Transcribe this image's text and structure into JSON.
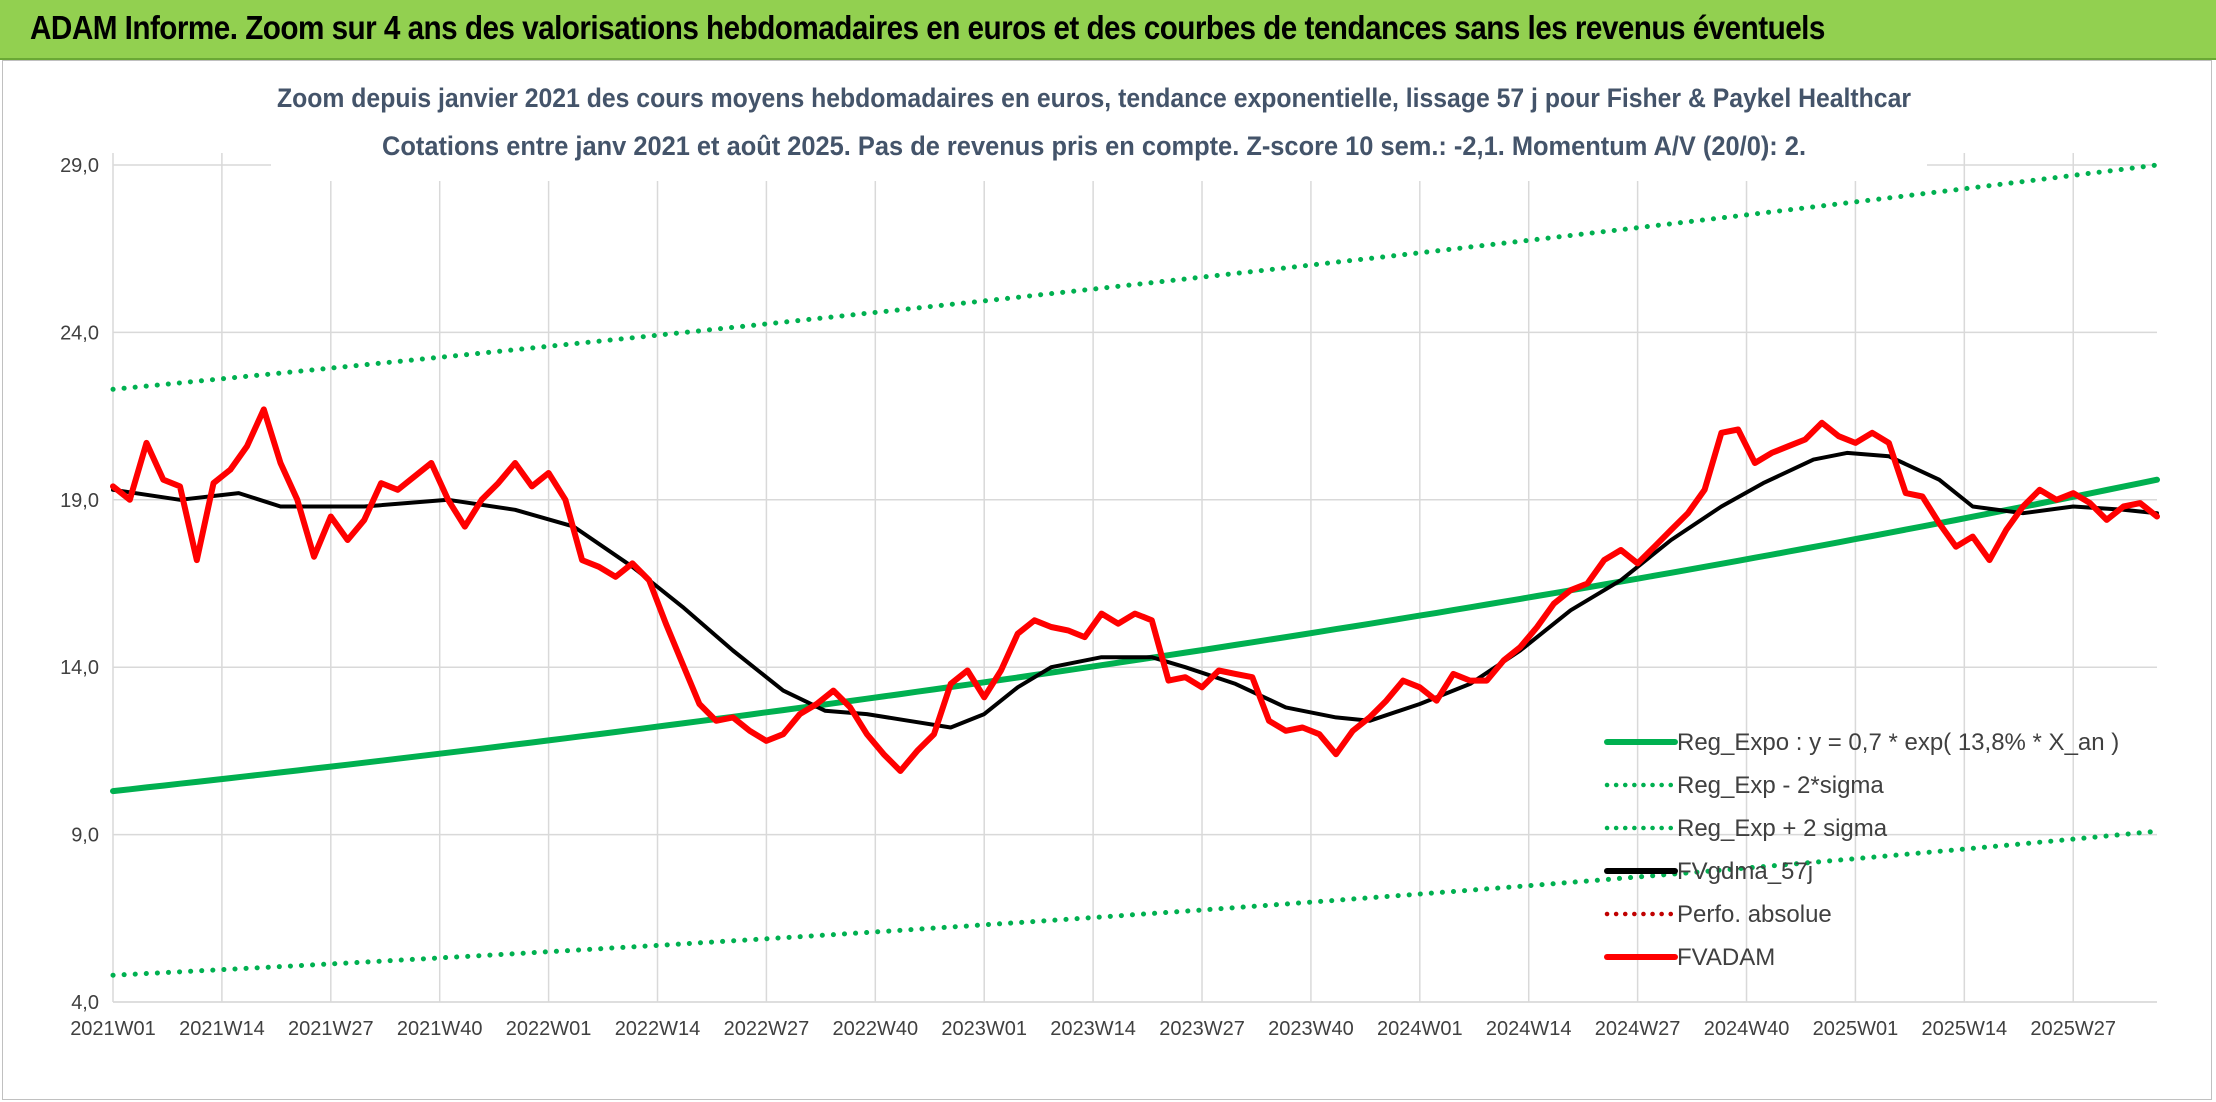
{
  "banner": {
    "title": "ADAM Informe. Zoom sur 4 ans des valorisations hebdomadaires en euros et des courbes de tendances sans les revenus éventuels"
  },
  "colors": {
    "banner_bg": "#92d050",
    "trend_green": "#00b050",
    "price_red": "#ff0000",
    "moving_avg_black": "#000000",
    "perf_red": "#c00000",
    "subtitle_text": "#44546a",
    "grid": "#d9d9d9"
  },
  "chart_data": {
    "type": "line",
    "title": "Zoom depuis janvier 2021 des cours moyens hebdomadaires en euros, tendance exponentielle, lissage 57 j pour Fisher & Paykel Healthcar",
    "subtitle": "Cotations entre janv 2021 et août 2025. Pas de revenus pris en compte. Z-score 10 sem.: -2,1. Momentum A/V (20/0): 2.",
    "xlabel": "",
    "ylabel": "",
    "ylim": [
      4.0,
      29.0
    ],
    "y_ticks": [
      "4,0",
      "9,0",
      "14,0",
      "19,0",
      "24,0",
      "29,0"
    ],
    "x_ticks": [
      "2021W01",
      "2021W14",
      "2021W27",
      "2021W40",
      "2022W01",
      "2022W14",
      "2022W27",
      "2022W40",
      "2023W01",
      "2023W14",
      "2023W27",
      "2023W40",
      "2024W01",
      "2024W14",
      "2024W27",
      "2024W40",
      "2025W01",
      "2025W14",
      "2025W27"
    ],
    "x_tick_index": [
      0,
      13,
      26,
      39,
      52,
      65,
      78,
      91,
      104,
      117,
      130,
      143,
      156,
      169,
      182,
      195,
      208,
      221,
      234
    ],
    "n_weeks": 245,
    "grid": true,
    "legend_position": "bottom-right",
    "series": [
      {
        "name": "Reg_Expo : y = 0,7 * exp( 13,8% *  X_an )",
        "style": "solid-thick",
        "color": "#00b050",
        "points": [
          [
            0,
            10.3
          ],
          [
            244,
            19.6
          ]
        ]
      },
      {
        "name": "Reg_Exp - 2*sigma",
        "style": "dotted",
        "color": "#00b050",
        "points": [
          [
            0,
            4.8
          ],
          [
            244,
            9.1
          ]
        ]
      },
      {
        "name": "Reg_Exp + 2 sigma",
        "style": "dotted",
        "color": "#00b050",
        "points": [
          [
            0,
            22.3
          ],
          [
            244,
            29.0
          ]
        ]
      },
      {
        "name": "FVgdma_57j",
        "style": "solid",
        "color": "#000000",
        "points": [
          [
            0,
            19.3
          ],
          [
            8,
            19.0
          ],
          [
            15,
            19.2
          ],
          [
            20,
            18.8
          ],
          [
            30,
            18.8
          ],
          [
            40,
            19.0
          ],
          [
            48,
            18.7
          ],
          [
            55,
            18.2
          ],
          [
            62,
            17.0
          ],
          [
            68,
            15.8
          ],
          [
            74,
            14.5
          ],
          [
            80,
            13.3
          ],
          [
            85,
            12.7
          ],
          [
            90,
            12.6
          ],
          [
            95,
            12.4
          ],
          [
            100,
            12.2
          ],
          [
            104,
            12.6
          ],
          [
            108,
            13.4
          ],
          [
            112,
            14.0
          ],
          [
            118,
            14.3
          ],
          [
            124,
            14.3
          ],
          [
            128,
            14.0
          ],
          [
            134,
            13.5
          ],
          [
            140,
            12.8
          ],
          [
            146,
            12.5
          ],
          [
            150,
            12.4
          ],
          [
            156,
            12.9
          ],
          [
            162,
            13.5
          ],
          [
            168,
            14.5
          ],
          [
            174,
            15.7
          ],
          [
            180,
            16.6
          ],
          [
            186,
            17.8
          ],
          [
            192,
            18.8
          ],
          [
            197,
            19.5
          ],
          [
            203,
            20.2
          ],
          [
            207,
            20.4
          ],
          [
            212,
            20.3
          ],
          [
            218,
            19.6
          ],
          [
            222,
            18.8
          ],
          [
            228,
            18.6
          ],
          [
            234,
            18.8
          ],
          [
            240,
            18.7
          ],
          [
            244,
            18.6
          ]
        ]
      },
      {
        "name": "Perfo. absolue",
        "style": "dotted",
        "color": "#c00000",
        "points": []
      },
      {
        "name": "FVADAM",
        "style": "solid-thick",
        "color": "#ff0000",
        "points": [
          [
            0,
            19.4
          ],
          [
            2,
            19.0
          ],
          [
            4,
            20.7
          ],
          [
            6,
            19.6
          ],
          [
            8,
            19.4
          ],
          [
            10,
            17.2
          ],
          [
            12,
            19.5
          ],
          [
            14,
            19.9
          ],
          [
            16,
            20.6
          ],
          [
            18,
            21.7
          ],
          [
            20,
            20.1
          ],
          [
            22,
            19.0
          ],
          [
            24,
            17.3
          ],
          [
            26,
            18.5
          ],
          [
            28,
            17.8
          ],
          [
            30,
            18.4
          ],
          [
            32,
            19.5
          ],
          [
            34,
            19.3
          ],
          [
            36,
            19.7
          ],
          [
            38,
            20.1
          ],
          [
            40,
            19.0
          ],
          [
            42,
            18.2
          ],
          [
            44,
            19.0
          ],
          [
            46,
            19.5
          ],
          [
            48,
            20.1
          ],
          [
            50,
            19.4
          ],
          [
            52,
            19.8
          ],
          [
            54,
            19.0
          ],
          [
            56,
            17.2
          ],
          [
            58,
            17.0
          ],
          [
            60,
            16.7
          ],
          [
            62,
            17.1
          ],
          [
            64,
            16.6
          ],
          [
            66,
            15.3
          ],
          [
            68,
            14.1
          ],
          [
            70,
            12.9
          ],
          [
            72,
            12.4
          ],
          [
            74,
            12.5
          ],
          [
            76,
            12.1
          ],
          [
            78,
            11.8
          ],
          [
            80,
            12.0
          ],
          [
            82,
            12.6
          ],
          [
            84,
            12.9
          ],
          [
            86,
            13.3
          ],
          [
            88,
            12.8
          ],
          [
            90,
            12.0
          ],
          [
            92,
            11.4
          ],
          [
            94,
            10.9
          ],
          [
            96,
            11.5
          ],
          [
            98,
            12.0
          ],
          [
            100,
            13.5
          ],
          [
            102,
            13.9
          ],
          [
            104,
            13.1
          ],
          [
            106,
            13.9
          ],
          [
            108,
            15.0
          ],
          [
            110,
            15.4
          ],
          [
            112,
            15.2
          ],
          [
            114,
            15.1
          ],
          [
            116,
            14.9
          ],
          [
            118,
            15.6
          ],
          [
            120,
            15.3
          ],
          [
            122,
            15.6
          ],
          [
            124,
            15.4
          ],
          [
            126,
            13.6
          ],
          [
            128,
            13.7
          ],
          [
            130,
            13.4
          ],
          [
            132,
            13.9
          ],
          [
            134,
            13.8
          ],
          [
            136,
            13.7
          ],
          [
            138,
            12.4
          ],
          [
            140,
            12.1
          ],
          [
            142,
            12.2
          ],
          [
            144,
            12.0
          ],
          [
            146,
            11.4
          ],
          [
            148,
            12.1
          ],
          [
            150,
            12.5
          ],
          [
            152,
            13.0
          ],
          [
            154,
            13.6
          ],
          [
            156,
            13.4
          ],
          [
            158,
            13.0
          ],
          [
            160,
            13.8
          ],
          [
            162,
            13.6
          ],
          [
            164,
            13.6
          ],
          [
            166,
            14.2
          ],
          [
            168,
            14.6
          ],
          [
            170,
            15.2
          ],
          [
            172,
            15.9
          ],
          [
            174,
            16.3
          ],
          [
            176,
            16.5
          ],
          [
            178,
            17.2
          ],
          [
            180,
            17.5
          ],
          [
            182,
            17.1
          ],
          [
            184,
            17.6
          ],
          [
            186,
            18.1
          ],
          [
            188,
            18.6
          ],
          [
            190,
            19.3
          ],
          [
            192,
            21.0
          ],
          [
            194,
            21.1
          ],
          [
            196,
            20.1
          ],
          [
            198,
            20.4
          ],
          [
            200,
            20.6
          ],
          [
            202,
            20.8
          ],
          [
            204,
            21.3
          ],
          [
            206,
            20.9
          ],
          [
            208,
            20.7
          ],
          [
            210,
            21.0
          ],
          [
            212,
            20.7
          ],
          [
            214,
            19.2
          ],
          [
            216,
            19.1
          ],
          [
            218,
            18.3
          ],
          [
            220,
            17.6
          ],
          [
            222,
            17.9
          ],
          [
            224,
            17.2
          ],
          [
            226,
            18.1
          ],
          [
            228,
            18.8
          ],
          [
            230,
            19.3
          ],
          [
            232,
            19.0
          ],
          [
            234,
            19.2
          ],
          [
            236,
            18.9
          ],
          [
            238,
            18.4
          ],
          [
            240,
            18.8
          ],
          [
            242,
            18.9
          ],
          [
            244,
            18.5
          ]
        ]
      }
    ]
  }
}
